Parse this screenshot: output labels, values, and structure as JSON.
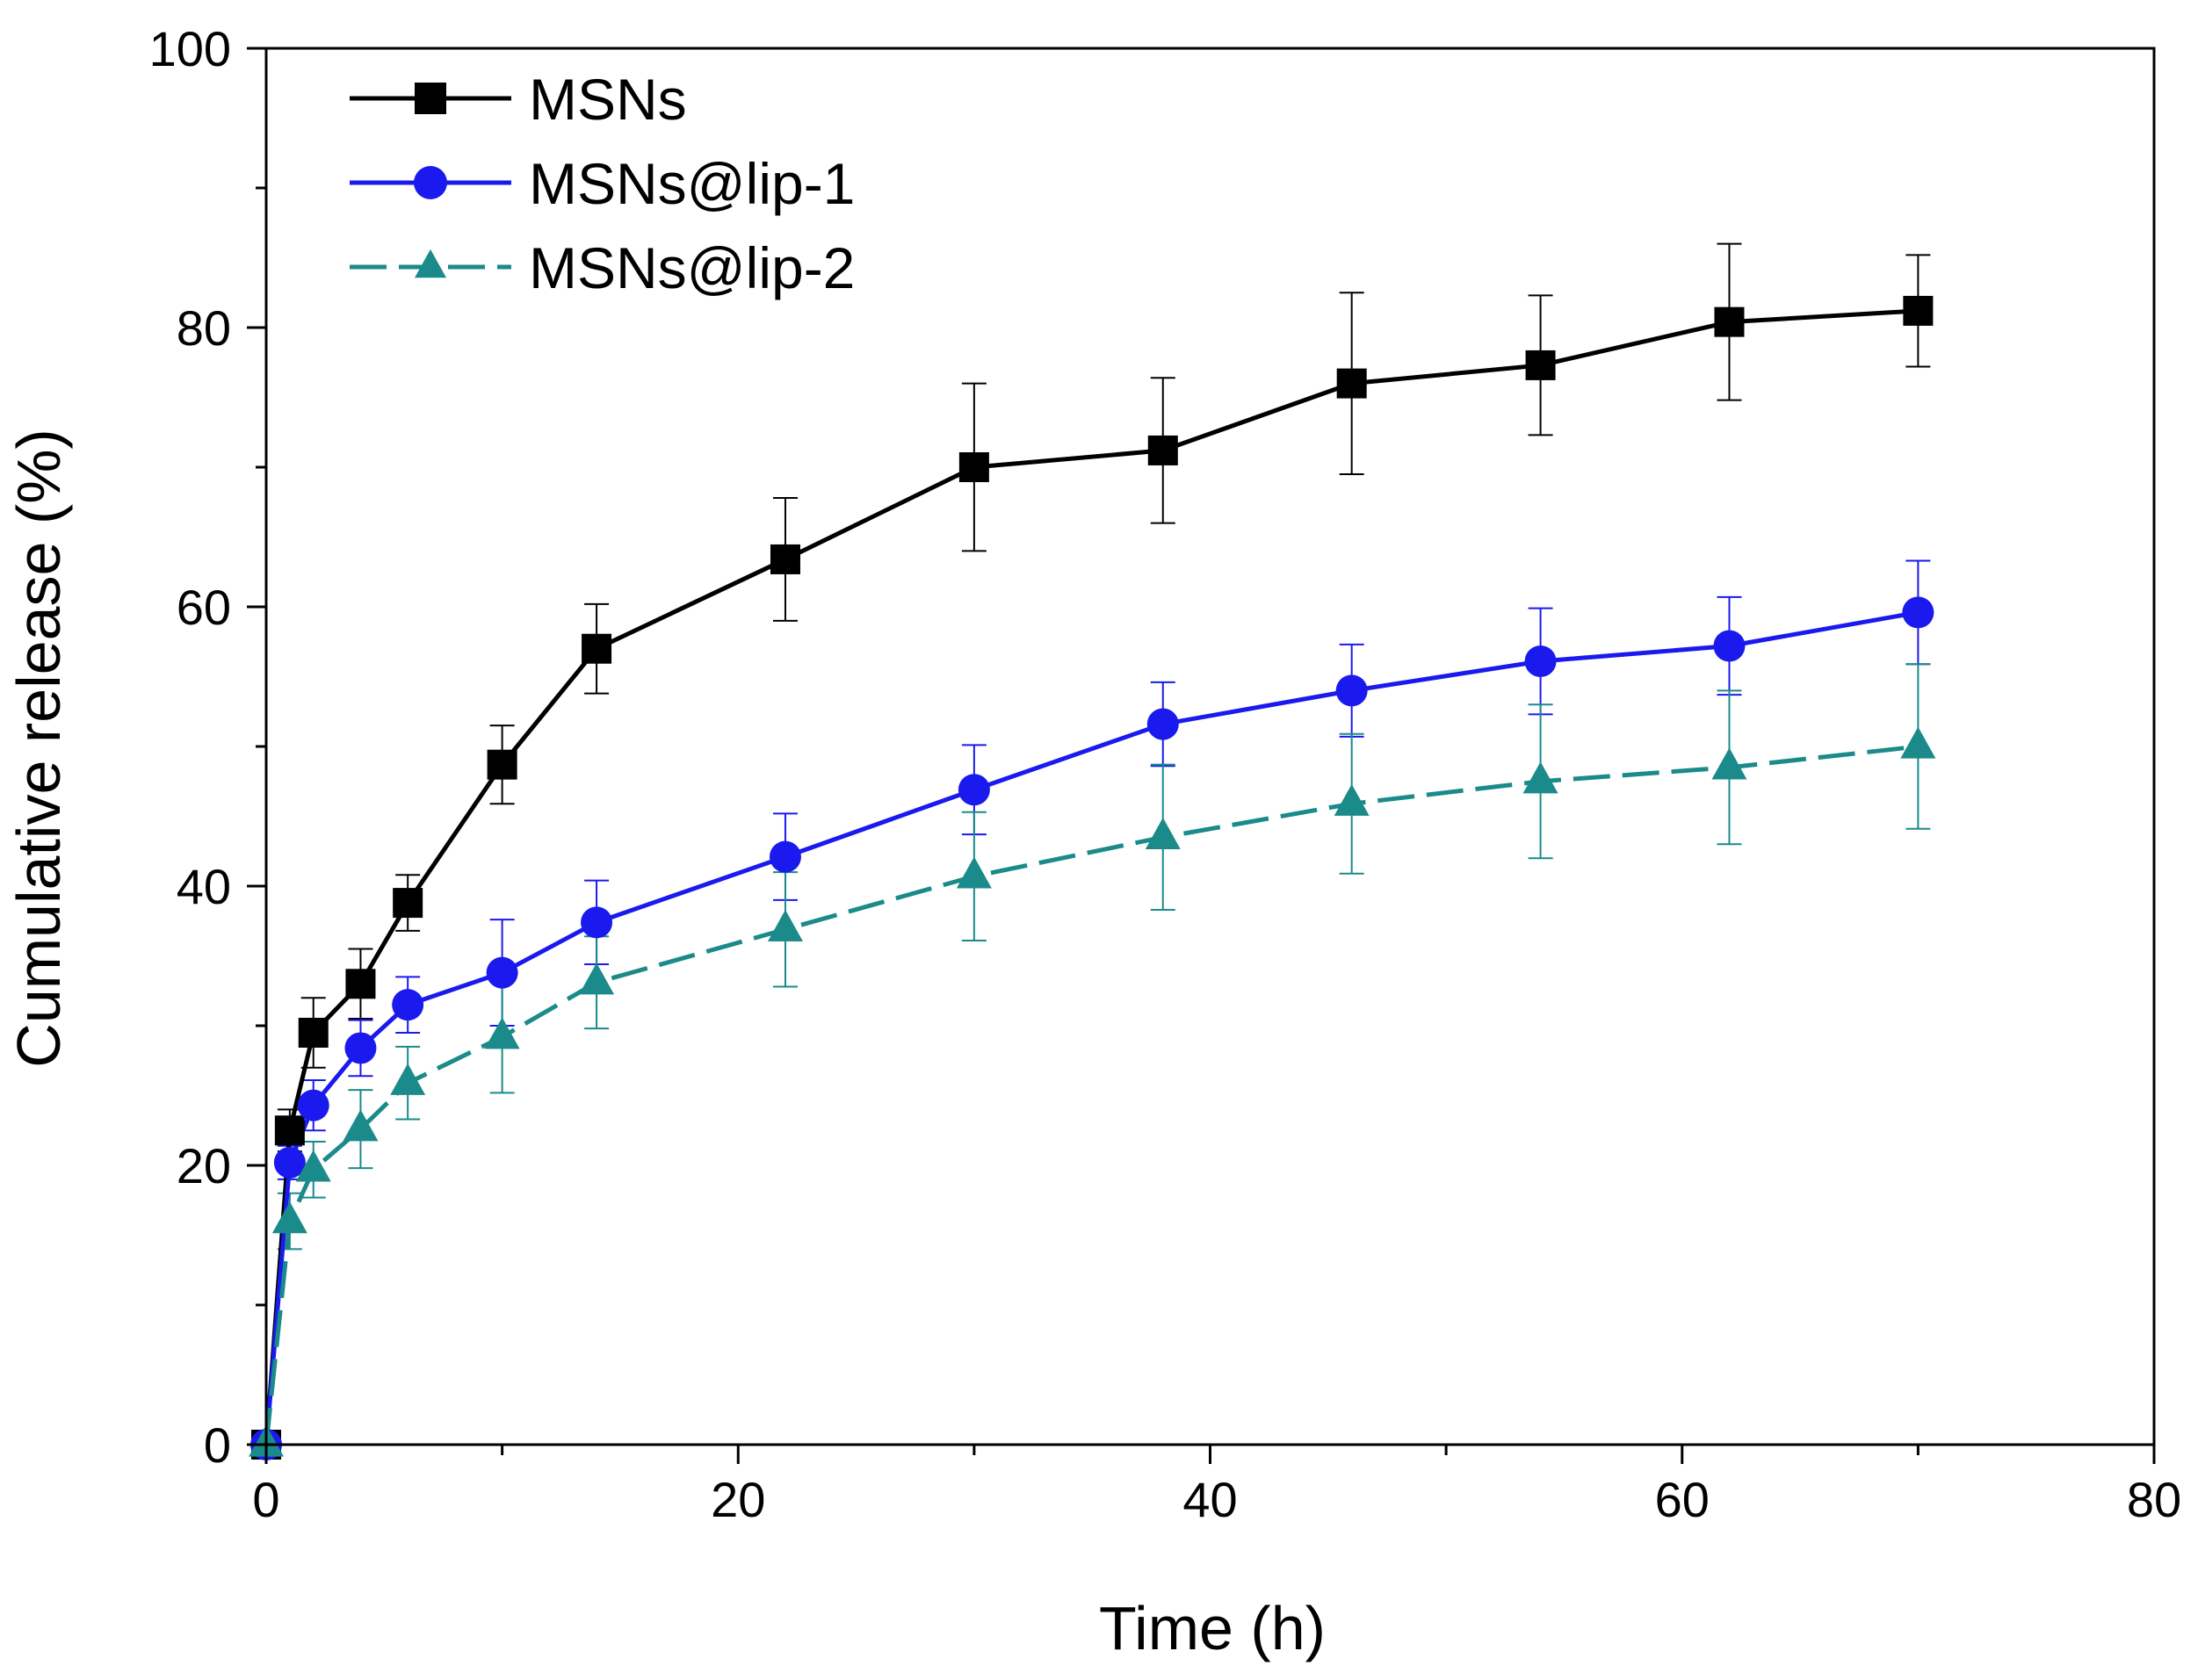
{
  "chart_data": {
    "type": "line",
    "title": "",
    "xlabel": "Time (h)",
    "ylabel": "Cumulative release (%)",
    "xlim": [
      0,
      80
    ],
    "ylim": [
      0,
      100
    ],
    "x_major_ticks": [
      0,
      20,
      40,
      60,
      80
    ],
    "x_minor_ticks": [
      10,
      30,
      50,
      70
    ],
    "y_major_ticks": [
      0,
      20,
      40,
      60,
      80,
      100
    ],
    "y_minor_ticks": [
      10,
      30,
      50,
      70,
      90
    ],
    "grid": false,
    "legend_position": "top-left",
    "x": [
      0,
      1,
      2,
      4,
      6,
      10,
      14,
      22,
      30,
      38,
      46,
      54,
      62,
      70
    ],
    "series": [
      {
        "name": "MSNs",
        "color": "#000000",
        "marker": "square",
        "line_style": "solid",
        "values": [
          0,
          22.5,
          29.5,
          33,
          38.8,
          48.7,
          57,
          63.4,
          70,
          71.2,
          76,
          77.3,
          80.4,
          81.2
        ],
        "errors": [
          0,
          1.5,
          2.5,
          2.5,
          2.0,
          2.8,
          3.2,
          4.4,
          6.0,
          5.2,
          6.5,
          5.0,
          5.6,
          4.0
        ]
      },
      {
        "name": "MSNs@lip-1",
        "color": "#1a1aee",
        "marker": "circle",
        "line_style": "solid",
        "values": [
          0,
          20.2,
          24.3,
          28.4,
          31.5,
          33.8,
          37.4,
          42.1,
          46.9,
          51.6,
          54,
          56.1,
          57.2,
          59.6
        ],
        "errors": [
          0,
          1.2,
          1.8,
          2.0,
          2.0,
          3.8,
          3.0,
          3.1,
          3.2,
          3.0,
          3.3,
          3.8,
          3.5,
          3.7
        ]
      },
      {
        "name": "MSNs@lip-2",
        "color": "#1b8a8a",
        "marker": "triangle",
        "line_style": "dashed",
        "values": [
          0,
          16,
          19.7,
          22.6,
          25.9,
          29.2,
          33.1,
          36.9,
          40.7,
          43.5,
          45.9,
          47.5,
          48.5,
          50
        ],
        "errors": [
          0,
          2.0,
          2.0,
          2.8,
          2.6,
          4.0,
          3.3,
          4.1,
          4.6,
          5.2,
          5.0,
          5.5,
          5.5,
          5.9
        ]
      }
    ]
  }
}
